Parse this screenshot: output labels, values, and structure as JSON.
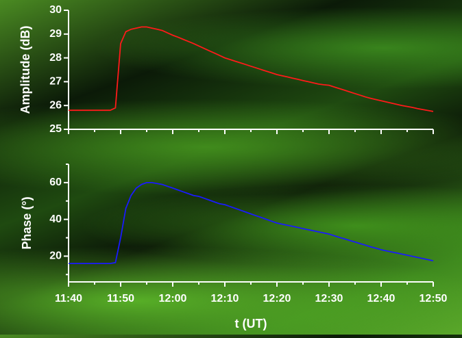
{
  "chart_data": [
    {
      "type": "line",
      "ylabel": "Amplitude (dB)",
      "x": [
        "11:40",
        "11:41",
        "11:42",
        "11:43",
        "11:44",
        "11:45",
        "11:46",
        "11:47",
        "11:48",
        "11:49",
        "11:50",
        "11:51",
        "11:52",
        "11:53",
        "11:54",
        "11:55",
        "11:56",
        "11:57",
        "11:58",
        "11:59",
        "12:00",
        "12:01",
        "12:02",
        "12:03",
        "12:04",
        "12:05",
        "12:06",
        "12:07",
        "12:08",
        "12:09",
        "12:10",
        "12:11",
        "12:12",
        "12:13",
        "12:14",
        "12:15",
        "12:16",
        "12:17",
        "12:18",
        "12:19",
        "12:20",
        "12:21",
        "12:22",
        "12:23",
        "12:24",
        "12:25",
        "12:26",
        "12:27",
        "12:28",
        "12:29",
        "12:30",
        "12:31",
        "12:32",
        "12:33",
        "12:34",
        "12:35",
        "12:36",
        "12:37",
        "12:38",
        "12:39",
        "12:40",
        "12:41",
        "12:42",
        "12:43",
        "12:44",
        "12:45",
        "12:46",
        "12:47",
        "12:48",
        "12:49",
        "12:50"
      ],
      "series": [
        {
          "name": "Amplitude",
          "color": "#ff1a1a",
          "values": [
            25.8,
            25.8,
            25.8,
            25.8,
            25.8,
            25.8,
            25.8,
            25.8,
            25.8,
            25.9,
            28.6,
            29.1,
            29.2,
            29.25,
            29.3,
            29.3,
            29.25,
            29.2,
            29.15,
            29.05,
            28.95,
            28.87,
            28.78,
            28.69,
            28.6,
            28.5,
            28.4,
            28.3,
            28.2,
            28.1,
            28.0,
            27.93,
            27.86,
            27.79,
            27.72,
            27.65,
            27.58,
            27.51,
            27.44,
            27.37,
            27.3,
            27.25,
            27.2,
            27.15,
            27.1,
            27.05,
            27.0,
            26.95,
            26.9,
            26.87,
            26.85,
            26.78,
            26.71,
            26.64,
            26.57,
            26.5,
            26.43,
            26.36,
            26.3,
            26.25,
            26.2,
            26.15,
            26.1,
            26.05,
            26.0,
            25.96,
            25.92,
            25.87,
            25.83,
            25.79,
            25.75
          ]
        }
      ],
      "xlim": [
        "11:40",
        "12:50"
      ],
      "ylim": [
        25,
        30
      ],
      "yticks": [
        25,
        26,
        27,
        28,
        29,
        30
      ]
    },
    {
      "type": "line",
      "ylabel": "Phase (°)",
      "xlabel": "t (UT)",
      "x": [
        "11:40",
        "11:41",
        "11:42",
        "11:43",
        "11:44",
        "11:45",
        "11:46",
        "11:47",
        "11:48",
        "11:49",
        "11:50",
        "11:51",
        "11:52",
        "11:53",
        "11:54",
        "11:55",
        "11:56",
        "11:57",
        "11:58",
        "11:59",
        "12:00",
        "12:01",
        "12:02",
        "12:03",
        "12:04",
        "12:05",
        "12:06",
        "12:07",
        "12:08",
        "12:09",
        "12:10",
        "12:11",
        "12:12",
        "12:13",
        "12:14",
        "12:15",
        "12:16",
        "12:17",
        "12:18",
        "12:19",
        "12:20",
        "12:21",
        "12:22",
        "12:23",
        "12:24",
        "12:25",
        "12:26",
        "12:27",
        "12:28",
        "12:29",
        "12:30",
        "12:31",
        "12:32",
        "12:33",
        "12:34",
        "12:35",
        "12:36",
        "12:37",
        "12:38",
        "12:39",
        "12:40",
        "12:41",
        "12:42",
        "12:43",
        "12:44",
        "12:45",
        "12:46",
        "12:47",
        "12:48",
        "12:49",
        "12:50"
      ],
      "series": [
        {
          "name": "Phase",
          "color": "#1a1aff",
          "values": [
            16,
            16,
            16,
            16,
            16,
            16,
            16,
            16,
            16,
            16.5,
            30,
            46,
            53,
            57,
            59,
            60,
            60,
            59.5,
            59,
            58,
            57,
            56,
            55,
            54,
            53,
            52.5,
            51.5,
            50.5,
            49.5,
            48.5,
            48,
            47,
            46,
            45,
            44,
            43,
            42,
            41,
            40,
            39,
            38,
            37.4,
            36.8,
            36.2,
            35.6,
            35,
            34.4,
            33.8,
            33.2,
            32.6,
            32,
            31.1,
            30.2,
            29.4,
            28.5,
            27.7,
            26.8,
            26,
            25.1,
            24.3,
            23.5,
            22.9,
            22.3,
            21.7,
            21.1,
            20.5,
            19.9,
            19.3,
            18.7,
            18.1,
            17.5
          ]
        }
      ],
      "xlim": [
        "11:40",
        "12:50"
      ],
      "xticks": [
        "11:40",
        "11:50",
        "12:00",
        "12:10",
        "12:20",
        "12:30",
        "12:40",
        "12:50"
      ],
      "ylim": [
        6,
        70
      ],
      "yticks": [
        20,
        40,
        60
      ]
    }
  ]
}
